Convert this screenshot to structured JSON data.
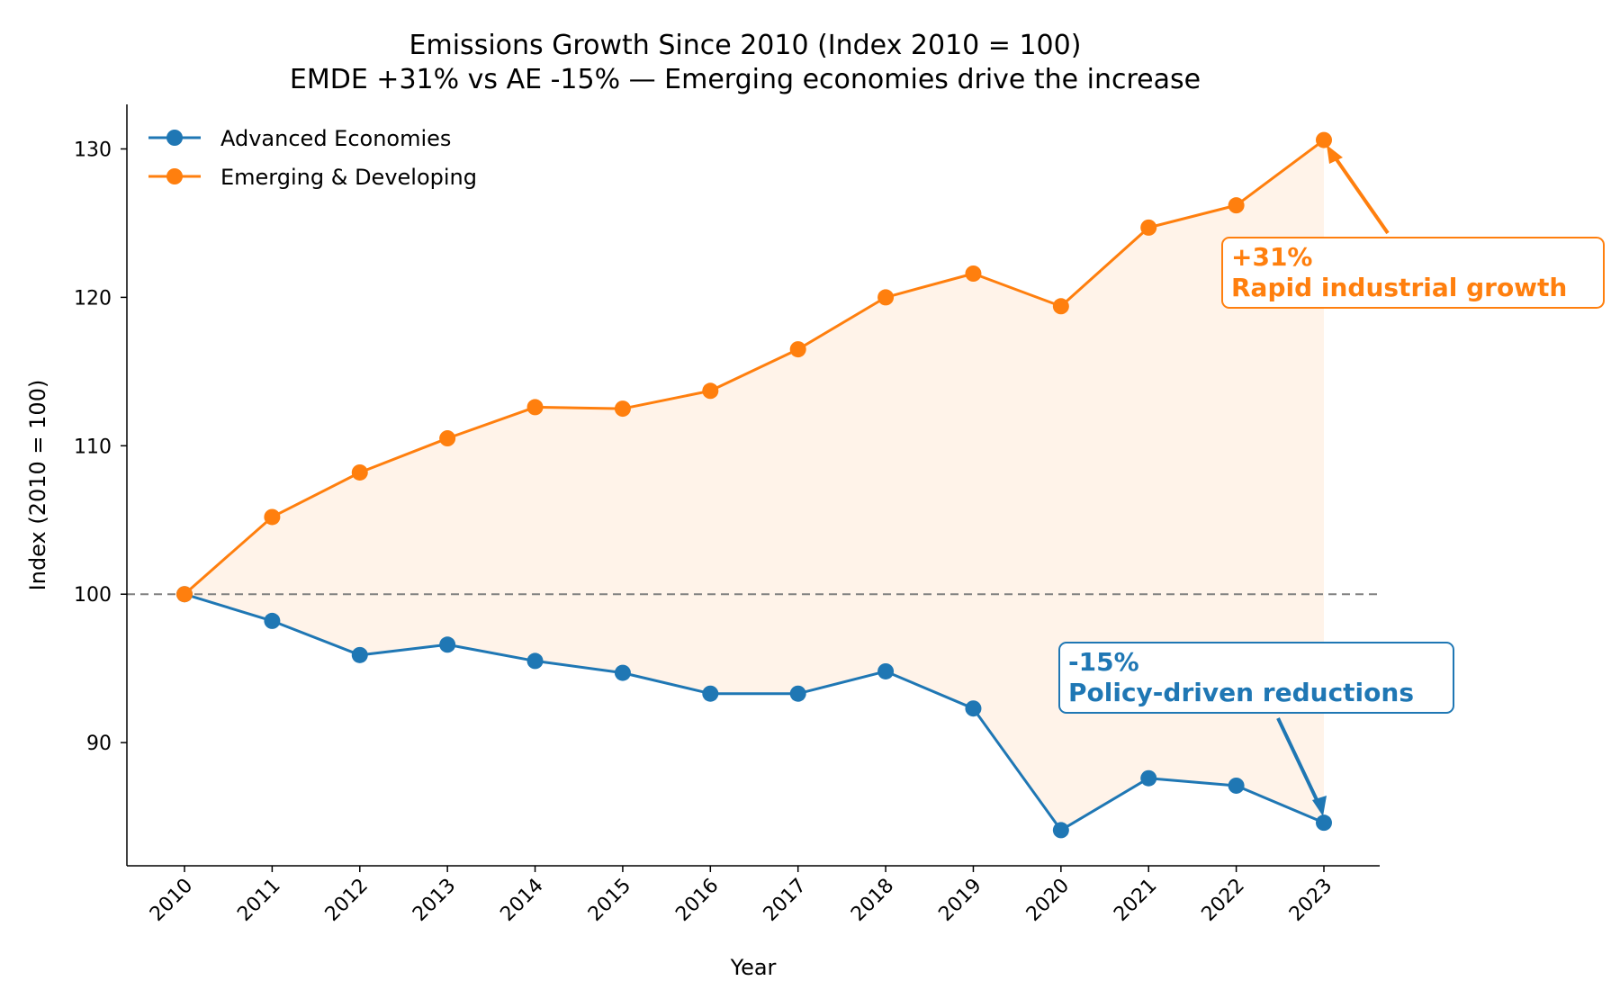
{
  "chart_data": {
    "type": "line",
    "title": "Emissions Growth Since 2010 (Index 2010 = 100)",
    "subtitle": "EMDE +31% vs AE -15% — Emerging economies drive the increase",
    "xlabel": "Year",
    "ylabel": "Index (2010 = 100)",
    "x": [
      "2010",
      "2011",
      "2012",
      "2013",
      "2014",
      "2015",
      "2016",
      "2017",
      "2018",
      "2019",
      "2020",
      "2021",
      "2022",
      "2023"
    ],
    "ylim": [
      81.7,
      133.0
    ],
    "yticks": [
      90,
      100,
      110,
      120,
      130
    ],
    "baseline": 100,
    "grid": false,
    "legend_position": "upper-left",
    "series": [
      {
        "name": "Advanced Economies",
        "color": "#1f77b4",
        "values": [
          100.0,
          98.2,
          95.9,
          96.6,
          95.5,
          94.7,
          93.3,
          93.3,
          94.8,
          92.3,
          84.1,
          87.6,
          87.1,
          84.6
        ]
      },
      {
        "name": "Emerging & Developing",
        "color": "#ff7f0e",
        "values": [
          100.0,
          105.2,
          108.2,
          110.5,
          112.6,
          112.5,
          113.7,
          116.5,
          120.0,
          121.6,
          119.4,
          124.7,
          126.2,
          130.6
        ]
      }
    ],
    "fill_between": {
      "color": "#ff7f0e"
    },
    "annotations": [
      {
        "line1": "+31%",
        "line2": "Rapid industrial growth",
        "color": "#ff7f0e",
        "target_x": "2023",
        "target_y": 130.6
      },
      {
        "line1": "-15%",
        "line2": "Policy-driven reductions",
        "color": "#1f77b4",
        "target_x": "2023",
        "target_y": 84.6
      }
    ]
  }
}
